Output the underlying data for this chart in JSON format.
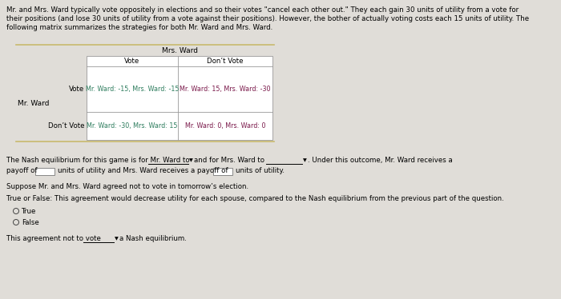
{
  "bg_color": "#e0ddd8",
  "intro_line1": "Mr. and Mrs. Ward typically vote oppositely in elections and so their votes \"cancel each other out.\" They each gain 30 units of utility from a vote for",
  "intro_line2": "their positions (and lose 30 units of utility from a vote against their positions). However, the bother of actually voting costs each 15 units of utility. The",
  "intro_line3": "following matrix summarizes the strategies for both Mr. Ward and Mrs. Ward.",
  "mrs_ward_label": "Mrs. Ward",
  "vote_col": "Vote",
  "dont_vote_col": "Don’t Vote",
  "mr_ward_label": "Mr. Ward",
  "row_vote": "Vote",
  "row_dont_vote": "Don’t Vote",
  "cell_vv": "Mr. Ward: -15, Mrs. Ward: -15",
  "cell_vd": "Mr. Ward: 15, Mrs. Ward: -30",
  "cell_dv": "Mr. Ward: -30, Mrs. Ward: 15",
  "cell_dd": "Mr. Ward: 0, Mrs. Ward: 0",
  "cell_vv_color": "#2e7d5e",
  "cell_vd_color": "#7b1a4b",
  "cell_dv_color": "#2e7d5e",
  "cell_dd_color": "#7b1a4b",
  "table_border_color": "#c8b96e",
  "nash_text1": "The Nash equilibrium for this game is for Mr. Ward to",
  "nash_text2": "and for Mrs. Ward to",
  "nash_text3": ". Under this outcome, Mr. Ward receives a",
  "nash_text4": "payoff of",
  "nash_text5": "units of utility and Mrs. Ward receives a payoff of",
  "nash_text6": "units of utility.",
  "suppose_text": "Suppose Mr. and Mrs. Ward agreed not to vote in tomorrow’s election.",
  "tf_text": "True or False: This agreement would decrease utility for each spouse, compared to the Nash equilibrium from the previous part of the question.",
  "radio_true": "True",
  "radio_false": "False",
  "last_pre": "This agreement not to vote",
  "last_post": "a Nash equilibrium."
}
